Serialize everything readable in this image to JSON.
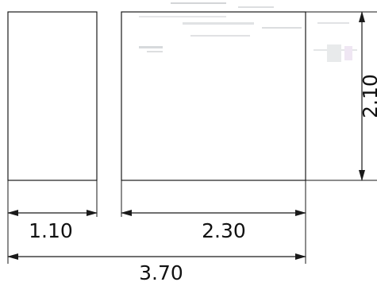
{
  "dimensions": {
    "width_left": "1.10",
    "width_right": "2.30",
    "width_total": "3.70",
    "height": "2.10"
  },
  "colors": {
    "line": "#1a1a1a",
    "background": "#ffffff",
    "artifact": "#9aa0a6",
    "artifact_accent": "#c9a7d6"
  }
}
